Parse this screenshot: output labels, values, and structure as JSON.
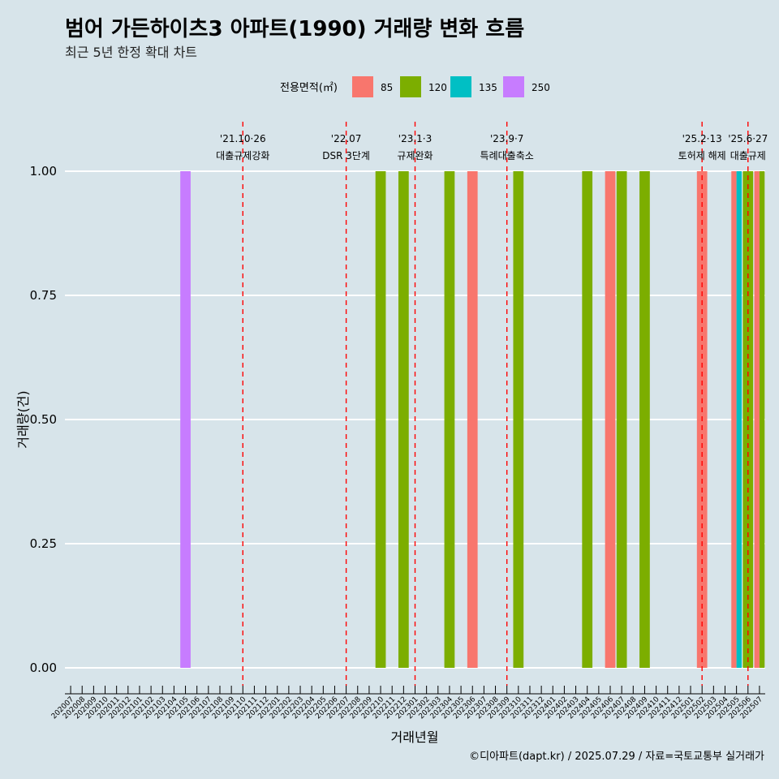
{
  "title": "범어 가든하이츠3 아파트(1990) 거래량 변화 흐름",
  "subtitle": "최근 5년 한정 확대 차트",
  "caption": "©디아파트(dapt.kr) / 2025.07.29 / 자료=국토교통부 실거래가",
  "legend": {
    "title": "전용면적(㎡)",
    "items": [
      {
        "label": "85",
        "color": "#f8766d"
      },
      {
        "label": "120",
        "color": "#7cae00"
      },
      {
        "label": "135",
        "color": "#00bfc4"
      },
      {
        "label": "250",
        "color": "#c77cff"
      }
    ]
  },
  "chart_data": {
    "type": "bar",
    "xlabel": "거래년월",
    "ylabel": "거래량(건)",
    "ylim": [
      0,
      1
    ],
    "yticks": [
      "0.00",
      "0.25",
      "0.50",
      "0.75",
      "1.00"
    ],
    "categories": [
      "202007",
      "202008",
      "202009",
      "202010",
      "202011",
      "202012",
      "202101",
      "202102",
      "202103",
      "202104",
      "202105",
      "202106",
      "202107",
      "202108",
      "202109",
      "202110",
      "202111",
      "202112",
      "202201",
      "202202",
      "202203",
      "202204",
      "202205",
      "202206",
      "202207",
      "202208",
      "202209",
      "202210",
      "202211",
      "202212",
      "202301",
      "202302",
      "202303",
      "202304",
      "202305",
      "202306",
      "202307",
      "202308",
      "202309",
      "202310",
      "202311",
      "202312",
      "202401",
      "202402",
      "202403",
      "202404",
      "202405",
      "202406",
      "202407",
      "202408",
      "202409",
      "202410",
      "202411",
      "202412",
      "202501",
      "202502",
      "202503",
      "202504",
      "202505",
      "202506",
      "202507"
    ],
    "bars": [
      {
        "month": "202105",
        "area": "250",
        "value": 1
      },
      {
        "month": "202210",
        "area": "120",
        "value": 1
      },
      {
        "month": "202212",
        "area": "120",
        "value": 1
      },
      {
        "month": "202304",
        "area": "120",
        "value": 1
      },
      {
        "month": "202306",
        "area": "85",
        "value": 1
      },
      {
        "month": "202310",
        "area": "120",
        "value": 1
      },
      {
        "month": "202404",
        "area": "120",
        "value": 1
      },
      {
        "month": "202406",
        "area": "85",
        "value": 1
      },
      {
        "month": "202407",
        "area": "120",
        "value": 1
      },
      {
        "month": "202409",
        "area": "120",
        "value": 1
      },
      {
        "month": "202502",
        "area": "85",
        "value": 1
      },
      {
        "month": "202505",
        "area": "85",
        "value": 1
      },
      {
        "month": "202505",
        "area": "135",
        "value": 1
      },
      {
        "month": "202506",
        "area": "120",
        "value": 1
      },
      {
        "month": "202507",
        "area": "85",
        "value": 1
      },
      {
        "month": "202507",
        "area": "120",
        "value": 1
      }
    ],
    "annotations": [
      {
        "x": "202110",
        "date": "'21.10·26",
        "label": "대출규제강화"
      },
      {
        "x": "202207",
        "date": "'22.07",
        "label": "DSR 3단계"
      },
      {
        "x": "202301",
        "date": "'23.1·3",
        "label": "규제완화"
      },
      {
        "x": "202309",
        "date": "'23.9·7",
        "label": "특례대출축소"
      },
      {
        "x": "202502",
        "date": "'25.2·13",
        "label": "토허제 해제"
      },
      {
        "x": "202506",
        "date": "'25.6·27",
        "label": "대출규제"
      }
    ]
  }
}
